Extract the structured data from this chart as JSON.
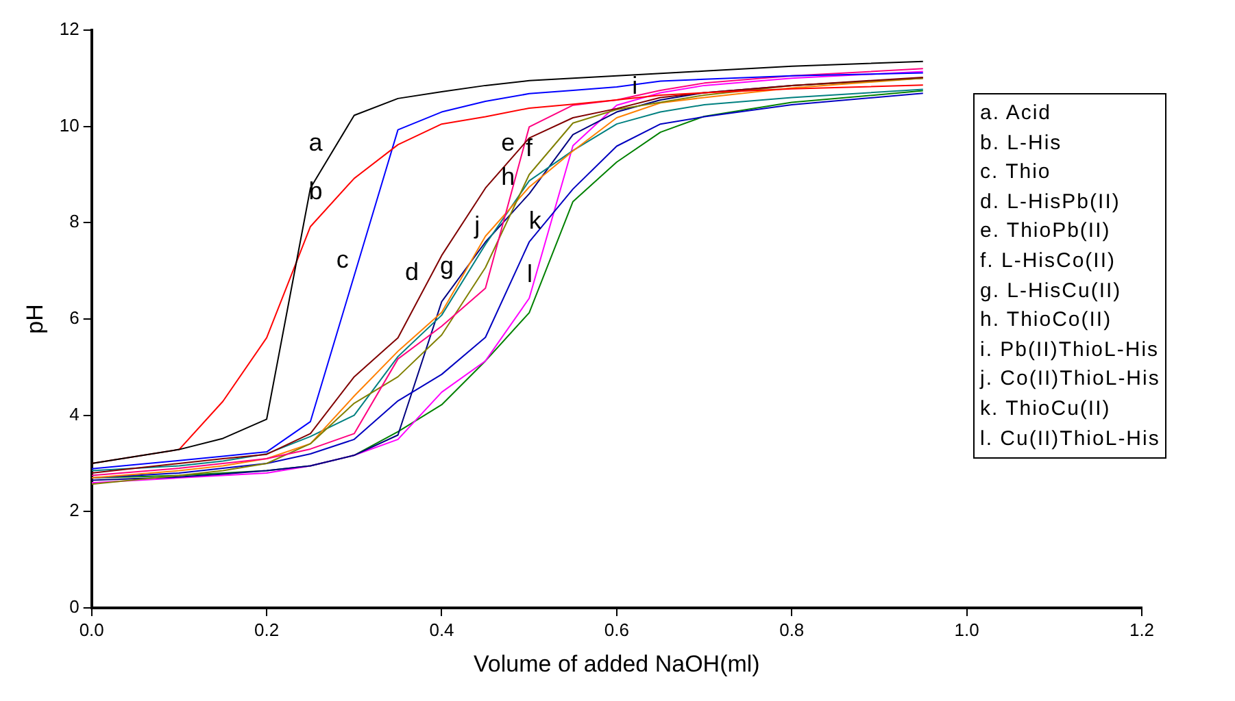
{
  "chart_data": {
    "type": "line",
    "xlabel": "Volume of added NaOH(ml)",
    "ylabel": "pH",
    "x": [
      0,
      0.1,
      0.15,
      0.2,
      0.25,
      0.3,
      0.35,
      0.4,
      0.45,
      0.5,
      0.55,
      0.6,
      0.65,
      0.7,
      0.8,
      0.95
    ],
    "xlim": [
      0,
      1.2
    ],
    "xticks": [
      {
        "value": 0,
        "label": "0.0"
      },
      {
        "value": 0.2,
        "label": "0.2"
      },
      {
        "value": 0.4,
        "label": "0.4"
      },
      {
        "value": 0.6,
        "label": "0.6"
      },
      {
        "value": 0.8,
        "label": "0.8"
      },
      {
        "value": 1,
        "label": "1.0"
      },
      {
        "value": 1.2,
        "label": "1.2"
      }
    ],
    "ylim": [
      0,
      12
    ],
    "yticks": [
      0,
      2,
      4,
      6,
      8,
      10,
      12
    ],
    "grid": false,
    "legend": false,
    "marker": "none",
    "line_style": "solid",
    "series": [
      {
        "color": "#000000",
        "values": [
          3.0,
          3.29,
          3.52,
          3.92,
          8.72,
          10.23,
          10.58,
          10.72,
          10.85,
          10.95,
          11.0,
          11.05,
          11.1,
          11.15,
          11.25,
          11.35
        ]
      },
      {
        "color": "#ff0000",
        "values": [
          3.0,
          3.29,
          4.29,
          5.61,
          7.92,
          8.92,
          9.62,
          10.05,
          10.2,
          10.38,
          10.46,
          10.55,
          10.65,
          10.7,
          10.78,
          10.86
        ]
      },
      {
        "color": "#0000ff",
        "values": [
          2.89,
          3.06,
          3.15,
          3.24,
          3.87,
          6.9,
          9.93,
          10.3,
          10.52,
          10.68,
          10.75,
          10.82,
          10.94,
          10.98,
          11.05,
          11.11
        ]
      },
      {
        "color": "#800000",
        "values": [
          2.8,
          3.0,
          3.1,
          3.19,
          3.62,
          4.8,
          5.61,
          7.32,
          8.72,
          9.76,
          10.18,
          10.37,
          10.6,
          10.7,
          10.85,
          11.02
        ]
      },
      {
        "color": "#ff0080",
        "values": [
          2.75,
          2.9,
          3.0,
          3.1,
          3.3,
          3.62,
          5.17,
          5.85,
          6.64,
          9.99,
          10.44,
          10.55,
          10.75,
          10.9,
          11.05,
          11.2
        ]
      },
      {
        "color": "#808000",
        "values": [
          2.57,
          2.75,
          2.85,
          3.0,
          3.41,
          4.25,
          4.8,
          5.67,
          7.07,
          9.0,
          10.07,
          10.35,
          10.5,
          10.65,
          10.85,
          11.0
        ]
      },
      {
        "color": "#ff8000",
        "values": [
          2.7,
          2.85,
          2.95,
          3.1,
          3.41,
          4.4,
          5.33,
          6.14,
          7.72,
          8.74,
          9.49,
          10.18,
          10.49,
          10.6,
          10.8,
          11.0
        ]
      },
      {
        "color": "#008080",
        "values": [
          2.85,
          2.95,
          3.05,
          3.2,
          3.56,
          4.0,
          5.22,
          6.08,
          7.55,
          8.87,
          9.5,
          10.05,
          10.3,
          10.45,
          10.6,
          10.77
        ]
      },
      {
        "color": "#0000c0",
        "values": [
          2.7,
          2.8,
          2.9,
          3.0,
          3.2,
          3.5,
          4.3,
          4.85,
          5.62,
          7.6,
          8.7,
          9.59,
          10.05,
          10.2,
          10.45,
          10.69
        ]
      },
      {
        "color": "#000080",
        "values": [
          2.65,
          2.72,
          2.78,
          2.85,
          2.95,
          3.17,
          3.59,
          6.36,
          7.6,
          8.6,
          9.83,
          10.3,
          10.55,
          10.7,
          10.85,
          11.0
        ]
      },
      {
        "color": "#ff00ff",
        "values": [
          2.6,
          2.7,
          2.75,
          2.8,
          2.95,
          3.17,
          3.5,
          4.48,
          5.13,
          6.43,
          9.6,
          10.44,
          10.7,
          10.85,
          11.0,
          11.14
        ]
      },
      {
        "color": "#008000",
        "values": [
          2.7,
          2.75,
          2.8,
          2.85,
          2.95,
          3.17,
          3.66,
          4.22,
          5.13,
          6.13,
          8.44,
          9.26,
          9.88,
          10.21,
          10.5,
          10.74
        ]
      }
    ],
    "annotations": [
      {
        "text": "a",
        "x": 0.27,
        "y": 9.32
      },
      {
        "text": "b",
        "x": 0.27,
        "y": 8.32
      },
      {
        "text": "c",
        "x": 0.3,
        "y": 6.9
      },
      {
        "text": "d",
        "x": 0.38,
        "y": 6.64
      },
      {
        "text": "e",
        "x": 0.49,
        "y": 9.32
      },
      {
        "text": "f",
        "x": 0.51,
        "y": 9.21
      },
      {
        "text": "g",
        "x": 0.42,
        "y": 6.77
      },
      {
        "text": "h",
        "x": 0.49,
        "y": 8.61
      },
      {
        "text": "i",
        "x": 0.63,
        "y": 10.51
      },
      {
        "text": "j",
        "x": 0.45,
        "y": 7.6
      },
      {
        "text": "k",
        "x": 0.52,
        "y": 7.7
      },
      {
        "text": "l",
        "x": 0.51,
        "y": 6.59
      },
      "a. Acid",
      "b. L-His",
      "c. Thio",
      "d. L-HisPb(II)",
      "e. ThioPb(II)",
      "f. L-HisCo(II)",
      "g. L-HisCu(II)",
      "h. ThioCo(II)",
      "i. Pb(II)ThioL-His",
      "j. Co(II)ThioL-His",
      "k. ThioCu(II)",
      "l. Cu(II)ThioL-His"
    ]
  }
}
